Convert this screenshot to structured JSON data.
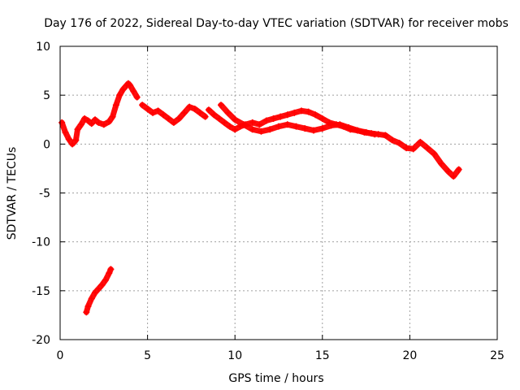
{
  "chart_data": {
    "type": "scatter",
    "title": "Day 176 of 2022, Sidereal Day-to-day VTEC variation (SDTVAR) for receiver mobs",
    "xlabel": "GPS time / hours",
    "ylabel": "SDTVAR / TECUs",
    "xlim": [
      0,
      25
    ],
    "ylim": [
      -20,
      10
    ],
    "xticks": [
      0,
      5,
      10,
      15,
      20,
      25
    ],
    "yticks": [
      -20,
      -15,
      -10,
      -5,
      0,
      5,
      10
    ],
    "xtick_labels": [
      "0",
      "5",
      "10",
      "15",
      "20",
      "25"
    ],
    "ytick_labels": [
      "-20",
      "-15",
      "-10",
      "-5",
      "0",
      "5",
      "10"
    ],
    "grid": true,
    "marker": "+",
    "series_color": "#ff0000",
    "series": [
      {
        "name": "track-main-1",
        "x": [
          0.1,
          0.3,
          0.5,
          0.7,
          0.9,
          1.0,
          1.2,
          1.4,
          1.6,
          1.8,
          2.0,
          2.2,
          2.5,
          2.8,
          3.0,
          3.2,
          3.4,
          3.6,
          3.8,
          3.9,
          4.0,
          4.2,
          4.4
        ],
        "y": [
          2.2,
          1.2,
          0.5,
          0.0,
          0.4,
          1.5,
          2.0,
          2.6,
          2.4,
          2.1,
          2.5,
          2.2,
          2.0,
          2.3,
          2.8,
          4.0,
          5.0,
          5.6,
          6.0,
          6.2,
          6.0,
          5.4,
          4.8
        ]
      },
      {
        "name": "track-main-2",
        "x": [
          4.7,
          5.0,
          5.3,
          5.6,
          5.9,
          6.2,
          6.5,
          6.8,
          7.1,
          7.4,
          7.7,
          8.0,
          8.3
        ],
        "y": [
          4.0,
          3.6,
          3.2,
          3.4,
          3.0,
          2.6,
          2.2,
          2.6,
          3.2,
          3.8,
          3.6,
          3.2,
          2.8
        ]
      },
      {
        "name": "track-main-3",
        "x": [
          8.5,
          8.8,
          9.1,
          9.4,
          9.7,
          10.0,
          10.3,
          10.6,
          11.0,
          11.4,
          11.8,
          12.2,
          12.6,
          13.0,
          13.4,
          13.8,
          14.2,
          14.6,
          15.0,
          15.4,
          15.8,
          16.2,
          16.6,
          17.0,
          17.4,
          17.8,
          18.2,
          18.6
        ],
        "y": [
          3.5,
          3.0,
          2.6,
          2.2,
          1.8,
          1.5,
          1.8,
          2.0,
          2.2,
          2.0,
          2.4,
          2.6,
          2.8,
          3.0,
          3.2,
          3.4,
          3.3,
          3.0,
          2.6,
          2.2,
          2.0,
          1.8,
          1.5,
          1.4,
          1.2,
          1.1,
          1.0,
          0.9
        ]
      },
      {
        "name": "track-main-4",
        "x": [
          9.2,
          9.6,
          10.0,
          10.5,
          11.0,
          11.5,
          12.0,
          12.5,
          13.0,
          13.5,
          14.0,
          14.5,
          15.0,
          15.5,
          16.0,
          16.5,
          17.0,
          17.5,
          18.0
        ],
        "y": [
          4.0,
          3.2,
          2.5,
          2.0,
          1.5,
          1.3,
          1.5,
          1.8,
          2.0,
          1.8,
          1.6,
          1.4,
          1.6,
          1.9,
          2.0,
          1.7,
          1.4,
          1.2,
          1.0
        ]
      },
      {
        "name": "track-main-5",
        "x": [
          18.6,
          19.0,
          19.4,
          19.8,
          20.2,
          20.6,
          21.0,
          21.4,
          21.8,
          22.2,
          22.5,
          22.8
        ],
        "y": [
          0.9,
          0.4,
          0.1,
          -0.4,
          -0.5,
          0.2,
          -0.4,
          -1.0,
          -2.0,
          -2.8,
          -3.3,
          -2.6
        ]
      },
      {
        "name": "track-low",
        "x": [
          1.5,
          1.6,
          1.8,
          2.0,
          2.2,
          2.4,
          2.6,
          2.8,
          2.9
        ],
        "y": [
          -17.2,
          -16.6,
          -15.8,
          -15.2,
          -14.8,
          -14.4,
          -13.9,
          -13.2,
          -12.8
        ]
      }
    ]
  }
}
